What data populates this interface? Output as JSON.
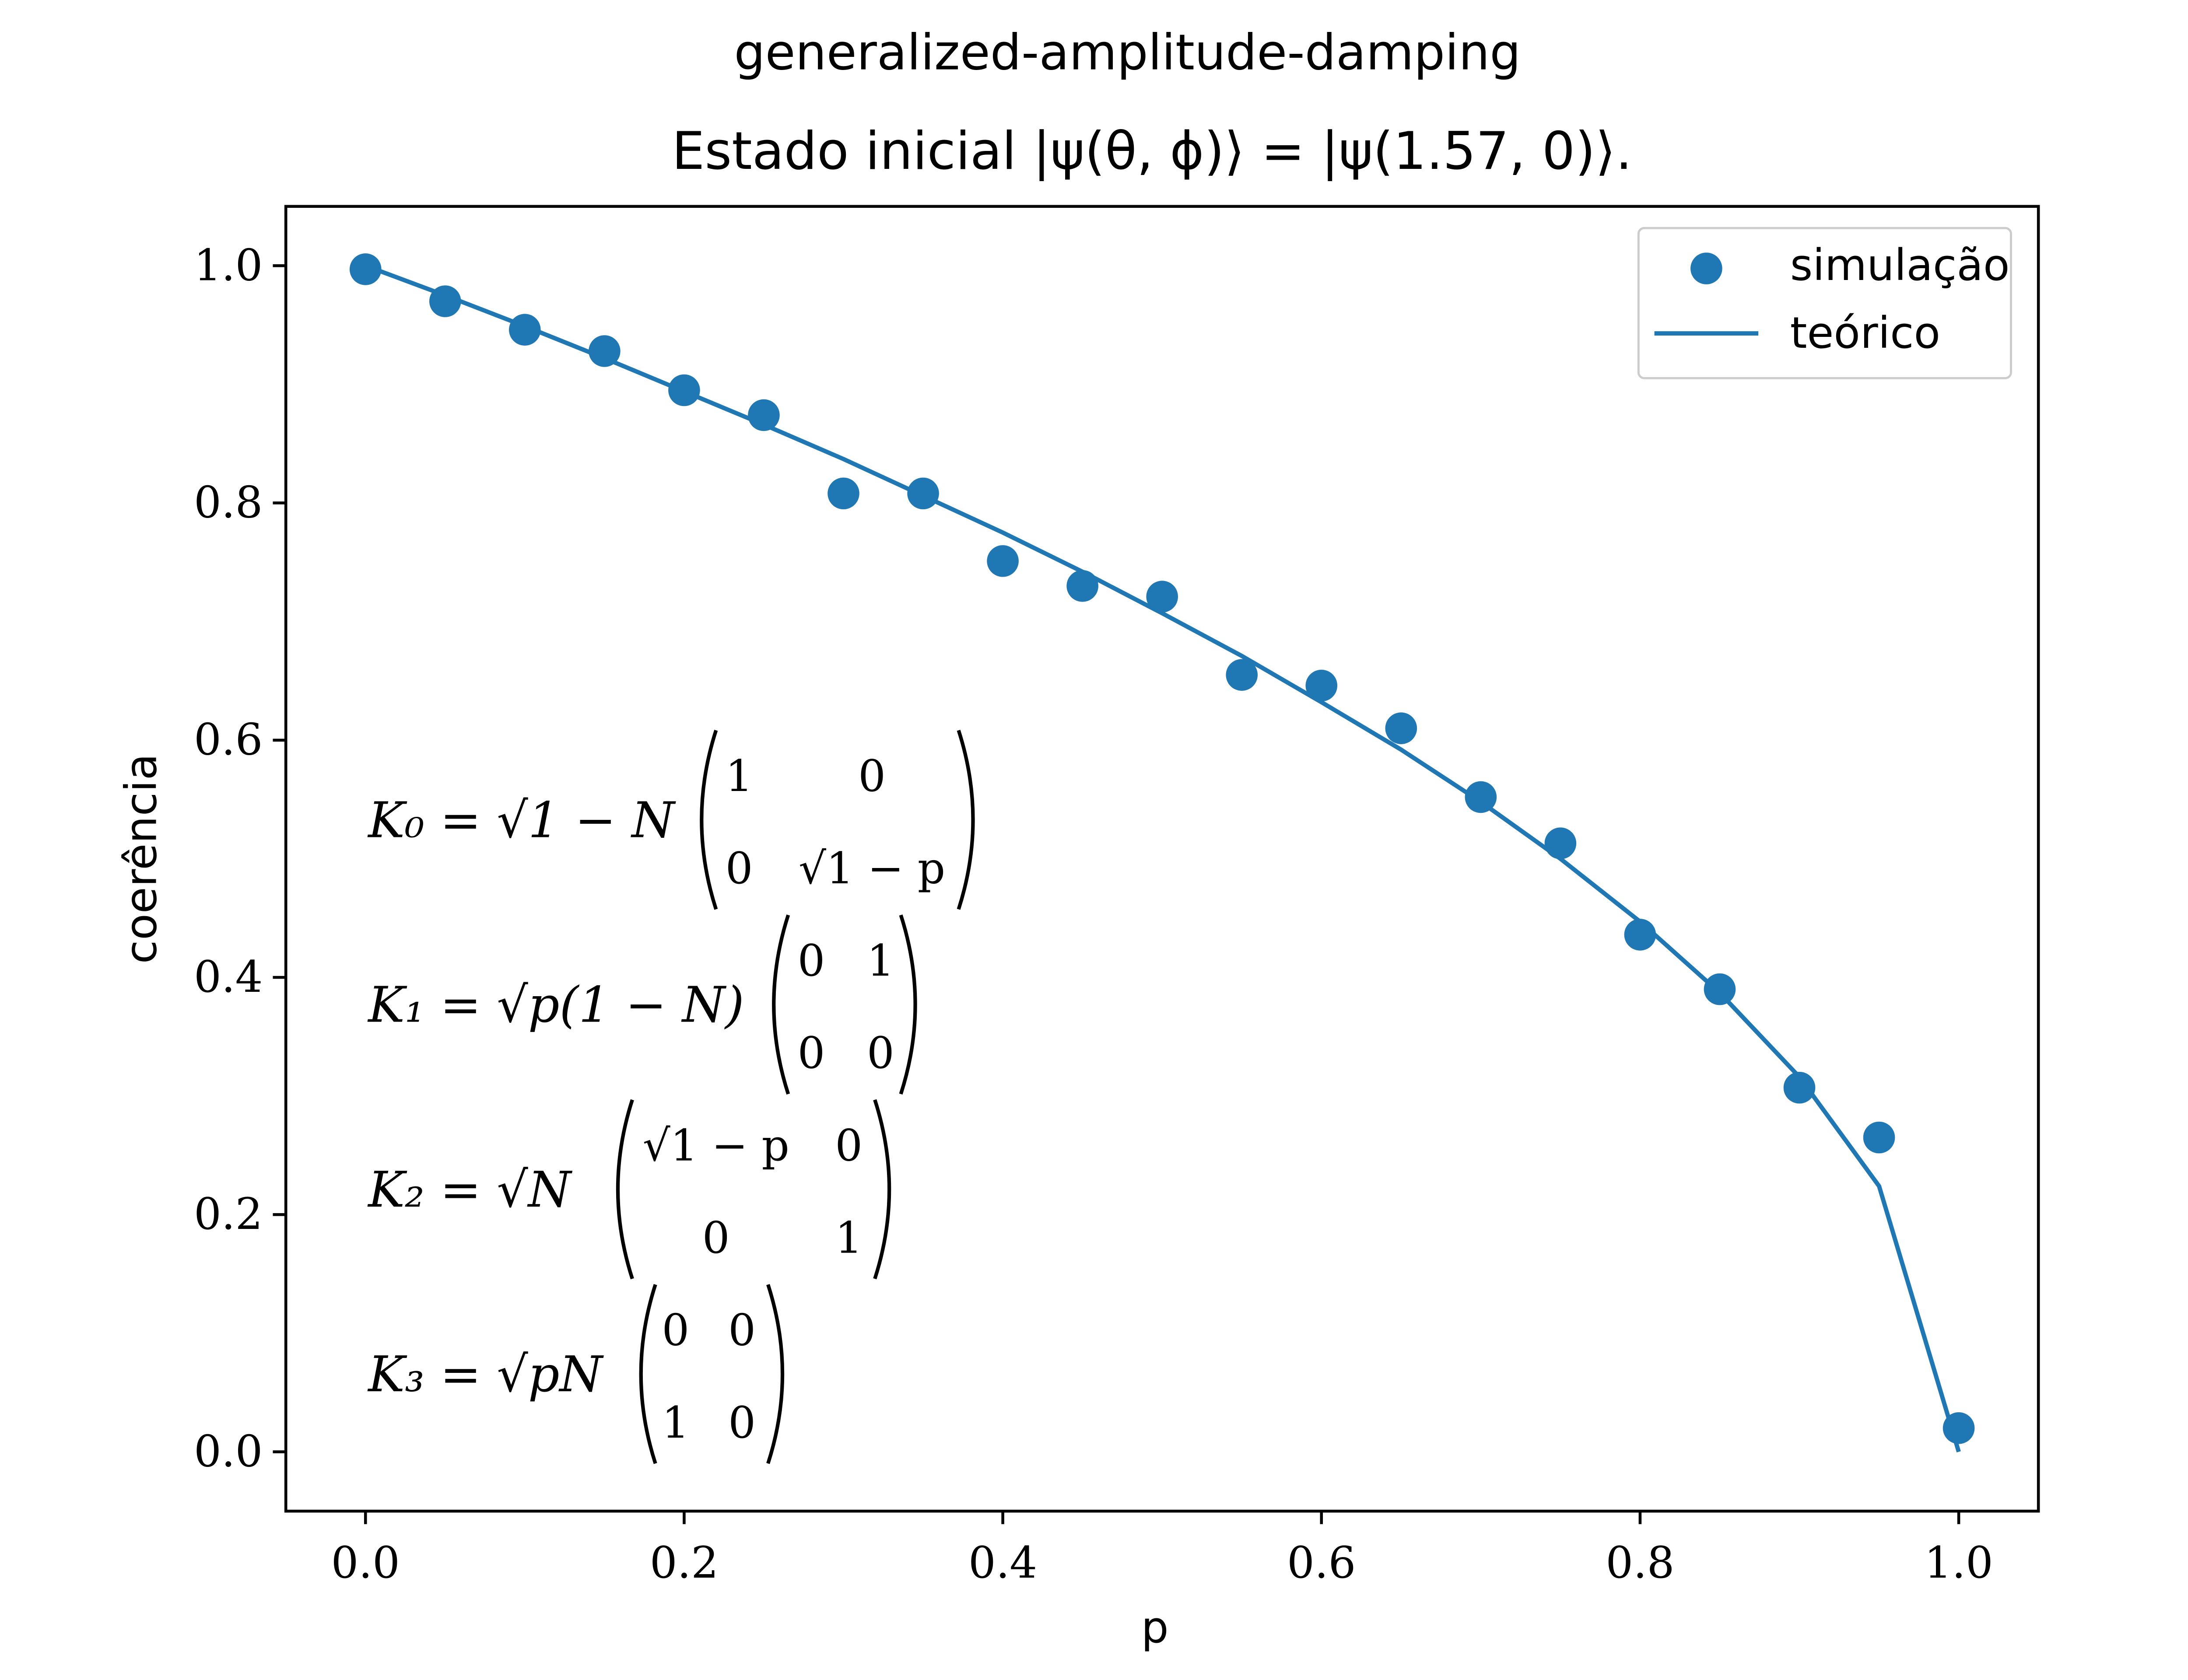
{
  "chart_data": {
    "type": "scatter",
    "title": "generalized-amplitude-damping",
    "subtitle": "Estado inicial |ψ(θ, ϕ)⟩ = |ψ(1.57, 0)⟩.",
    "xlabel": "p",
    "ylabel": "coerência",
    "xlim": [
      -0.05,
      1.05
    ],
    "ylim": [
      -0.05,
      1.05
    ],
    "xticks": [
      0.0,
      0.2,
      0.4,
      0.6,
      0.8,
      1.0
    ],
    "yticks": [
      0.0,
      0.2,
      0.4,
      0.6,
      0.8,
      1.0
    ],
    "xtick_labels": [
      "0.0",
      "0.2",
      "0.4",
      "0.6",
      "0.8",
      "1.0"
    ],
    "ytick_labels": [
      "0.0",
      "0.2",
      "0.4",
      "0.6",
      "0.8",
      "1.0"
    ],
    "grid": false,
    "legend_position": "top-right",
    "color": "#1f77b4",
    "series": [
      {
        "name": "simulação",
        "kind": "scatter",
        "x": [
          0.0,
          0.05,
          0.1,
          0.15,
          0.2,
          0.25,
          0.3,
          0.35,
          0.4,
          0.45,
          0.5,
          0.55,
          0.6,
          0.65,
          0.7,
          0.75,
          0.8,
          0.85,
          0.9,
          0.95,
          1.0
        ],
        "y": [
          0.997,
          0.97,
          0.946,
          0.928,
          0.895,
          0.874,
          0.808,
          0.808,
          0.751,
          0.73,
          0.721,
          0.655,
          0.646,
          0.61,
          0.552,
          0.513,
          0.436,
          0.39,
          0.307,
          0.265,
          0.02
        ]
      },
      {
        "name": "teórico",
        "kind": "line",
        "x": [
          0.0,
          0.05,
          0.1,
          0.15,
          0.2,
          0.25,
          0.3,
          0.35,
          0.4,
          0.45,
          0.5,
          0.55,
          0.6,
          0.65,
          0.7,
          0.75,
          0.8,
          0.85,
          0.9,
          0.95,
          1.0
        ],
        "y": [
          1.0,
          0.975,
          0.949,
          0.922,
          0.894,
          0.866,
          0.837,
          0.806,
          0.775,
          0.742,
          0.707,
          0.671,
          0.632,
          0.592,
          0.548,
          0.5,
          0.447,
          0.387,
          0.316,
          0.224,
          0.0
        ]
      }
    ],
    "annotation_lines": [
      {
        "lhs": "K₀ = √1 − N",
        "matrix": [
          [
            "1",
            "0"
          ],
          [
            "0",
            "√1 − p"
          ]
        ]
      },
      {
        "lhs": "K₁ = √p(1 − N)",
        "matrix": [
          [
            "0",
            "1"
          ],
          [
            "0",
            "0"
          ]
        ]
      },
      {
        "lhs": "K₂ = √N",
        "matrix": [
          [
            "√1 − p",
            "0"
          ],
          [
            "0",
            "1"
          ]
        ]
      },
      {
        "lhs": "K₃ = √pN",
        "matrix": [
          [
            "0",
            "0"
          ],
          [
            "1",
            "0"
          ]
        ]
      }
    ]
  }
}
